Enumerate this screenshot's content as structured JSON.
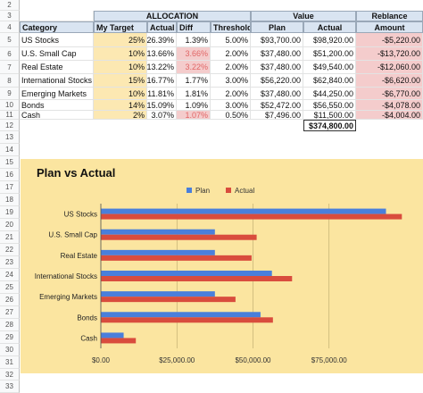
{
  "rows": [
    "2",
    "3",
    "4",
    "5",
    "6",
    "7",
    "8",
    "9",
    "10",
    "11",
    "12",
    "13",
    "14",
    "15",
    "16",
    "17",
    "18",
    "19",
    "20",
    "21",
    "22",
    "23",
    "24",
    "25",
    "26",
    "27",
    "28",
    "29",
    "30",
    "31",
    "32",
    "33"
  ],
  "groups": {
    "allocation": "ALLOCATION",
    "value": "Value",
    "rebalance": "Reblance"
  },
  "headers": {
    "category": "Category",
    "my_target": "My Target",
    "actual": "Actual",
    "diff": "Diff",
    "threshold": "Threshold",
    "plan": "Plan",
    "actual_value": "Actual",
    "amount": "Amount"
  },
  "table": [
    {
      "category": "US Stocks",
      "target": "25%",
      "actual": "26.39%",
      "diff": "1.39%",
      "threshold": "5.00%",
      "plan": "$93,700.00",
      "actual_value": "$98,920.00",
      "amount": "-$5,220.00",
      "diff_alert": false
    },
    {
      "category": "U.S. Small Cap",
      "target": "10%",
      "actual": "13.66%",
      "diff": "3.66%",
      "threshold": "2.00%",
      "plan": "$37,480.00",
      "actual_value": "$51,200.00",
      "amount": "-$13,720.00",
      "diff_alert": true
    },
    {
      "category": "Real Estate",
      "target": "10%",
      "actual": "13.22%",
      "diff": "3.22%",
      "threshold": "2.00%",
      "plan": "$37,480.00",
      "actual_value": "$49,540.00",
      "amount": "-$12,060.00",
      "diff_alert": true
    },
    {
      "category": "International Stocks",
      "target": "15%",
      "actual": "16.77%",
      "diff": "1.77%",
      "threshold": "3.00%",
      "plan": "$56,220.00",
      "actual_value": "$62,840.00",
      "amount": "-$6,620.00",
      "diff_alert": false
    },
    {
      "category": "Emerging Markets",
      "target": "10%",
      "actual": "11.81%",
      "diff": "1.81%",
      "threshold": "2.00%",
      "plan": "$37,480.00",
      "actual_value": "$44,250.00",
      "amount": "-$6,770.00",
      "diff_alert": false
    },
    {
      "category": "Bonds",
      "target": "14%",
      "actual": "15.09%",
      "diff": "1.09%",
      "threshold": "3.00%",
      "plan": "$52,472.00",
      "actual_value": "$56,550.00",
      "amount": "-$4,078.00",
      "diff_alert": false
    },
    {
      "category": "Cash",
      "target": "2%",
      "actual": "3.07%",
      "diff": "1.07%",
      "threshold": "0.50%",
      "plan": "$7,496.00",
      "actual_value": "$11,500.00",
      "amount": "-$4,004.00",
      "diff_alert": true
    }
  ],
  "total": "$374,800.00",
  "colors": {
    "plan": "#4a7fdb",
    "actual": "#d94c3d",
    "chart_bg": "#fbe5a0"
  },
  "chart_data": {
    "type": "bar",
    "orientation": "horizontal",
    "title": "Plan vs Actual",
    "categories": [
      "US Stocks",
      "U.S. Small Cap",
      "Real Estate",
      "International Stocks",
      "Emerging Markets",
      "Bonds",
      "Cash"
    ],
    "series": [
      {
        "name": "Plan",
        "values": [
          93700,
          37480,
          37480,
          56220,
          37480,
          52472,
          7496
        ]
      },
      {
        "name": "Actual",
        "values": [
          98920,
          51200,
          49540,
          62840,
          44250,
          56550,
          11500
        ]
      }
    ],
    "xlim": [
      0,
      100000
    ],
    "ticks": [
      0,
      25000,
      50000,
      75000
    ],
    "tick_labels": [
      "$0.00",
      "$25,000.00",
      "$50,000.00",
      "$75,000.00"
    ],
    "legend": "top",
    "grid": true
  }
}
